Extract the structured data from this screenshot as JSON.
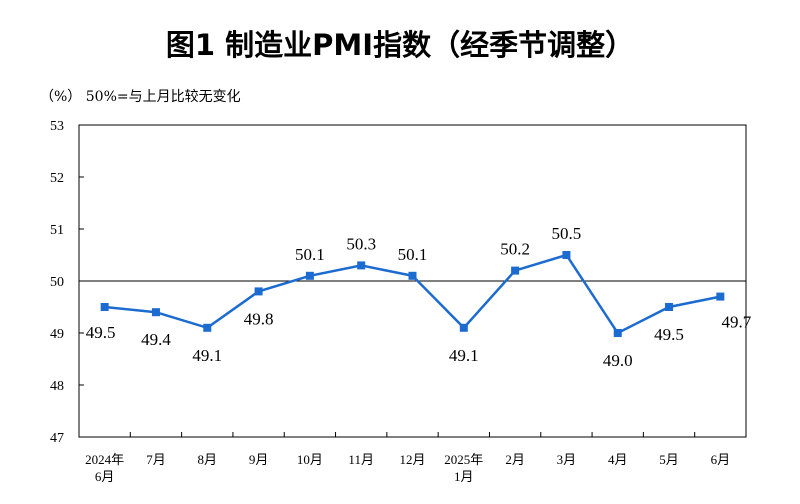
{
  "chart_data": {
    "type": "line",
    "title": "图1  制造业PMI指数（经季节调整）",
    "subtitle": "（%）  50%=与上月比较无变化",
    "categories": [
      [
        "2024年",
        "6月"
      ],
      [
        "7月"
      ],
      [
        "8月"
      ],
      [
        "9月"
      ],
      [
        "10月"
      ],
      [
        "11月"
      ],
      [
        "12月"
      ],
      [
        "2025年",
        "1月"
      ],
      [
        "2月"
      ],
      [
        "3月"
      ],
      [
        "4月"
      ],
      [
        "5月"
      ],
      [
        "6月"
      ]
    ],
    "values": [
      49.5,
      49.4,
      49.1,
      49.8,
      50.1,
      50.3,
      50.1,
      49.1,
      50.2,
      50.5,
      49.0,
      49.5,
      49.7
    ],
    "data_labels": [
      "49.5",
      "49.4",
      "49.1",
      "49.8",
      "50.1",
      "50.3",
      "50.1",
      "49.1",
      "50.2",
      "50.5",
      "49.0",
      "49.5",
      "49.7"
    ],
    "ylim": [
      47,
      53
    ],
    "yticks": [
      "47",
      "48",
      "49",
      "50",
      "51",
      "52",
      "53"
    ],
    "reference_line": 50,
    "grid": false,
    "line_color": "#1c6bd0"
  }
}
